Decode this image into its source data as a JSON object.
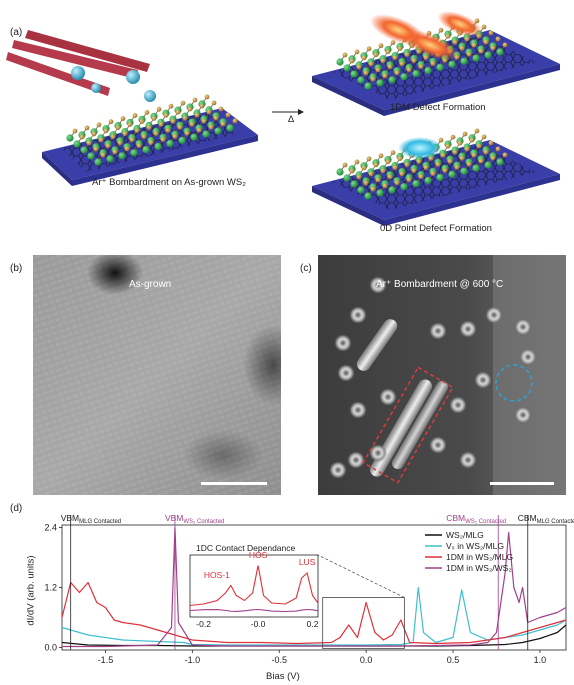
{
  "panel_labels": {
    "a": "(a)",
    "b": "(b)",
    "c": "(c)",
    "d": "(d)"
  },
  "panel_a": {
    "caption_left": "Ar⁺ Bombardment on As-grown WS₂",
    "arrow_label": "Δ",
    "caption_top_right": "1DM Defect Formation",
    "caption_bottom_right": "0D Point Defect Formation"
  },
  "panel_b": {
    "label": "As-grown"
  },
  "panel_c": {
    "label": "Ar⁺ Bombardment @ 600 °C"
  },
  "colors": {
    "substrate": "#3a3ea8",
    "tungsten": "#1e8a3a",
    "sulfur": "#b48a3c",
    "argon": "#3fa9c9",
    "ion_beam": "#b53a4b",
    "defect_1dm": "#f07a3c",
    "dashed_rect": "#e23b3b",
    "dashed_circle": "#2aa6d8",
    "series_ws2_mlg": "#111111",
    "series_vs": "#3fbfcf",
    "series_1dm_mlg": "#e0303a",
    "series_1dm_ws2": "#a0418a",
    "vbm_ws2_line": "#a0418a"
  },
  "chart_data": {
    "type": "line",
    "title": "",
    "xlabel": "Bias (V)",
    "ylabel": "dI/dV (arb. units)",
    "xlim": [
      -1.75,
      1.15
    ],
    "ylim": [
      -0.05,
      2.45
    ],
    "x_ticks": [
      "-1.5",
      "-1.0",
      "-0.5",
      "0.0",
      "0.5",
      "1.0"
    ],
    "x_tick_values": [
      -1.5,
      -1.0,
      -0.5,
      0.0,
      0.5,
      1.0
    ],
    "y_ticks": [
      "0.0",
      "1.2",
      "2.4"
    ],
    "y_tick_values": [
      0.0,
      1.2,
      2.4
    ],
    "legend_position": "top-right",
    "legend": [
      "WS₂/MLG",
      "Vₛ in WS₂/MLG",
      "1DM in WS₂/MLG",
      "1DM in WS₂/WS₂"
    ],
    "markers": [
      {
        "label": "VBM",
        "sub": "MLG Contacted",
        "x": -1.7
      },
      {
        "label": "VBM",
        "sub": "WS₂ Contacted",
        "x": -1.1
      },
      {
        "label": "CBM",
        "sub": "WS₂ Contacted",
        "x": 0.76
      },
      {
        "label": "CBM",
        "sub": "MLG Contacted",
        "x": 0.93
      }
    ],
    "series": [
      {
        "name": "WS₂/MLG",
        "x": [
          -1.75,
          -1.6,
          -1.4,
          -1.2,
          -1.0,
          -0.8,
          -0.6,
          -0.4,
          -0.2,
          0.0,
          0.2,
          0.4,
          0.6,
          0.8,
          0.9,
          1.0,
          1.1,
          1.15
        ],
        "y": [
          0.1,
          0.05,
          0.04,
          0.04,
          0.03,
          0.03,
          0.03,
          0.03,
          0.03,
          0.03,
          0.03,
          0.03,
          0.04,
          0.06,
          0.1,
          0.18,
          0.3,
          0.45
        ]
      },
      {
        "name": "Vₛ in WS₂/MLG",
        "x": [
          -1.75,
          -1.6,
          -1.4,
          -1.2,
          -1.05,
          -1.0,
          -0.8,
          -0.6,
          -0.4,
          -0.2,
          0.0,
          0.2,
          0.27,
          0.3,
          0.33,
          0.4,
          0.5,
          0.55,
          0.6,
          0.7,
          0.8,
          0.9,
          1.0,
          1.1,
          1.15
        ],
        "y": [
          0.4,
          0.25,
          0.15,
          0.12,
          0.1,
          0.06,
          0.05,
          0.05,
          0.05,
          0.05,
          0.05,
          0.06,
          0.1,
          1.2,
          0.3,
          0.1,
          0.2,
          1.15,
          0.3,
          0.15,
          0.2,
          0.25,
          0.35,
          0.45,
          0.55
        ]
      },
      {
        "name": "1DM in WS₂/MLG",
        "x": [
          -1.75,
          -1.7,
          -1.65,
          -1.6,
          -1.55,
          -1.5,
          -1.45,
          -1.4,
          -1.3,
          -1.2,
          -1.1,
          -1.0,
          -0.8,
          -0.6,
          -0.4,
          -0.2,
          -0.15,
          -0.1,
          -0.05,
          0.0,
          0.05,
          0.1,
          0.15,
          0.2,
          0.25,
          0.4,
          0.6,
          0.8,
          0.9,
          1.0,
          1.1,
          1.15
        ],
        "y": [
          0.6,
          1.3,
          1.1,
          1.3,
          0.9,
          0.8,
          0.55,
          0.5,
          0.45,
          0.35,
          0.25,
          0.15,
          0.1,
          0.1,
          0.08,
          0.1,
          0.2,
          0.45,
          0.2,
          0.9,
          0.3,
          0.15,
          0.25,
          0.55,
          0.1,
          0.08,
          0.1,
          0.2,
          0.3,
          0.4,
          0.5,
          0.55
        ]
      },
      {
        "name": "1DM in WS₂/WS₂",
        "x": [
          -1.75,
          -1.5,
          -1.2,
          -1.12,
          -1.1,
          -1.08,
          -1.0,
          -0.8,
          -0.6,
          -0.4,
          -0.2,
          0.0,
          0.2,
          0.4,
          0.6,
          0.7,
          0.75,
          0.8,
          0.82,
          0.85,
          0.88,
          0.9,
          0.93,
          1.0,
          1.1,
          1.15
        ],
        "y": [
          0.02,
          0.02,
          0.05,
          0.4,
          2.4,
          0.5,
          0.05,
          0.03,
          0.03,
          0.03,
          0.03,
          0.03,
          0.03,
          0.04,
          0.05,
          0.1,
          0.3,
          1.5,
          2.3,
          1.2,
          0.9,
          1.2,
          0.5,
          0.6,
          0.7,
          0.8
        ]
      }
    ],
    "inset": {
      "title": "1DC Contact Dependance",
      "xlim": [
        -0.25,
        0.22
      ],
      "x_ticks": [
        "-0.2",
        "-0.0",
        "0.2"
      ],
      "x_tick_values": [
        -0.2,
        0.0,
        0.2
      ],
      "annotations": [
        "HOS-1",
        "HOS",
        "LUS"
      ],
      "annotation_x": [
        -0.1,
        0.0,
        0.18
      ]
    }
  }
}
